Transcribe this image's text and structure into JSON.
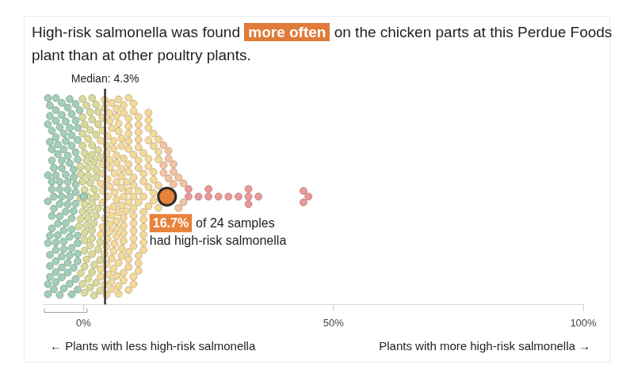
{
  "chart_data": {
    "type": "beeswarm",
    "title": "High-risk salmonella was found more often on the chicken parts at this Perdue Foods plant than at other poultry plants.",
    "title_highlight": "more often",
    "x_label_left": "← Plants with less high-risk salmonella",
    "x_label_right": "Plants with more high-risk salmonella →",
    "xlim": [
      -8,
      100
    ],
    "xticks": [
      {
        "value": 0,
        "label": "0%"
      },
      {
        "value": 50,
        "label": "50%"
      },
      {
        "value": 100,
        "label": "100%"
      }
    ],
    "grid": false,
    "series": [
      {
        "color": "#a3cfb9",
        "x": [
          0
        ],
        "counts": [
          130
        ]
      },
      {
        "color": "#d9da9c",
        "x": [
          1,
          2.5,
          3.3
        ],
        "counts": [
          26,
          22,
          20
        ]
      },
      {
        "color": "#f4d99c",
        "x": [
          5,
          6,
          7,
          8,
          9,
          10,
          11,
          12,
          13,
          14,
          15
        ],
        "counts": [
          24,
          22,
          20,
          18,
          16,
          14,
          12,
          10,
          8,
          6,
          5
        ]
      },
      {
        "color": "#f3c4a4",
        "x": [
          16,
          17,
          18,
          19,
          20
        ],
        "counts": [
          3,
          3,
          3,
          2,
          2
        ]
      },
      {
        "color": "#e89a9a",
        "x": [
          21,
          23,
          25,
          27,
          29,
          31,
          33,
          35,
          44,
          45
        ],
        "counts": [
          2,
          1,
          2,
          1,
          1,
          1,
          3,
          1,
          2,
          1
        ]
      }
    ],
    "median": {
      "value": 4.3,
      "label": "Median: 4.3%"
    },
    "highlight": {
      "value": 16.7,
      "label": "16.7%",
      "text": [
        "of 24 samples",
        "had high-risk salmonella"
      ],
      "color": "#e8833a"
    }
  }
}
